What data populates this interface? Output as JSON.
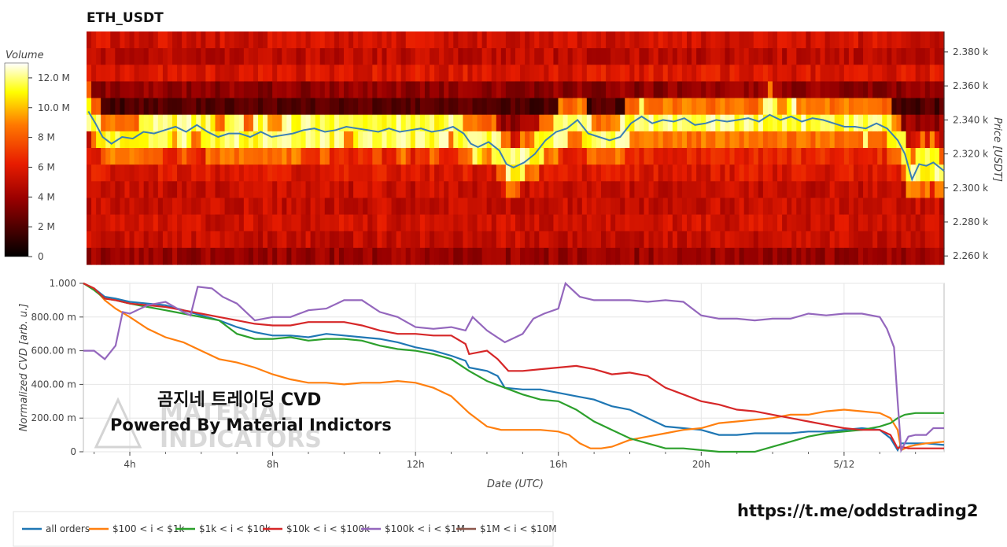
{
  "chart_data": [
    {
      "type": "heatmap",
      "title": "ETH_USDT",
      "ylabel": "Price [USDT]",
      "colorbar_label": "Volume",
      "colorbar_ticks": [
        "0",
        "2 M",
        "4 M",
        "6 M",
        "8 M",
        "10.0 M",
        "12.0 M"
      ],
      "colorbar_range": [
        0,
        13.0
      ],
      "y_ticks": [
        "2.380 k",
        "2.360 k",
        "2.340 k",
        "2.320 k",
        "2.300 k",
        "2.280 k",
        "2.260 k"
      ],
      "y_tick_values": [
        2380,
        2360,
        2340,
        2320,
        2300,
        2280,
        2260
      ],
      "ylim": [
        2255,
        2392
      ],
      "xlim": [
        2.7,
        26.8
      ],
      "price_line_color": "#3a7fb5",
      "price_line": {
        "x": [
          2.75,
          2.95,
          3.15,
          3.4,
          3.7,
          4.0,
          4.3,
          4.6,
          4.9,
          5.2,
          5.5,
          5.8,
          6.1,
          6.4,
          6.7,
          7.0,
          7.3,
          7.6,
          7.9,
          8.2,
          8.5,
          8.8,
          9.1,
          9.4,
          9.7,
          10.0,
          10.3,
          10.6,
          10.9,
          11.2,
          11.5,
          11.8,
          12.1,
          12.4,
          12.7,
          13.0,
          13.3,
          13.5,
          13.7,
          14.0,
          14.3,
          14.5,
          14.7,
          15.0,
          15.3,
          15.6,
          15.9,
          16.2,
          16.5,
          16.8,
          17.1,
          17.4,
          17.7,
          18.0,
          18.3,
          18.6,
          18.9,
          19.2,
          19.5,
          19.8,
          20.1,
          20.4,
          20.7,
          21.0,
          21.3,
          21.6,
          21.9,
          22.2,
          22.5,
          22.8,
          23.1,
          23.4,
          23.7,
          24.0,
          24.3,
          24.6,
          24.9,
          25.2,
          25.5,
          25.7,
          25.9,
          26.1,
          26.3,
          26.5,
          26.8
        ],
        "y": [
          2345,
          2338,
          2330,
          2326,
          2330,
          2329,
          2333,
          2332,
          2334,
          2336,
          2333,
          2337,
          2333,
          2330,
          2332,
          2332,
          2330,
          2333,
          2330,
          2331,
          2332,
          2334,
          2335,
          2333,
          2334,
          2336,
          2335,
          2334,
          2333,
          2335,
          2333,
          2334,
          2335,
          2333,
          2334,
          2336,
          2332,
          2326,
          2324,
          2327,
          2322,
          2314,
          2312,
          2315,
          2320,
          2328,
          2333,
          2335,
          2340,
          2332,
          2330,
          2328,
          2330,
          2338,
          2342,
          2338,
          2340,
          2339,
          2341,
          2337,
          2338,
          2340,
          2339,
          2340,
          2341,
          2339,
          2343,
          2340,
          2342,
          2339,
          2341,
          2340,
          2338,
          2336,
          2336,
          2335,
          2338,
          2335,
          2328,
          2320,
          2305,
          2314,
          2313,
          2315,
          2310
        ]
      }
    },
    {
      "type": "line",
      "ylabel": "Normalized CVD [arb. u.]",
      "xlabel": "Date (UTC)",
      "x_ticks": [
        "4h",
        "8h",
        "12h",
        "16h",
        "20h",
        "5/12"
      ],
      "x_tick_values": [
        4,
        8,
        12,
        16,
        20,
        24
      ],
      "xlim": [
        2.7,
        26.8
      ],
      "y_ticks": [
        "0",
        "200.00 m",
        "400.00 m",
        "600.00 m",
        "800.00 m",
        "1.000"
      ],
      "y_tick_values": [
        0,
        0.2,
        0.4,
        0.6,
        0.8,
        1.0
      ],
      "ylim": [
        0,
        1.0
      ],
      "grid": true,
      "legend_position": "bottom-left",
      "series": [
        {
          "name": "all orders",
          "color": "#1f77b4",
          "x": [
            2.7,
            3.0,
            3.3,
            3.6,
            4.0,
            4.5,
            5.0,
            5.5,
            6.0,
            6.5,
            7.0,
            7.5,
            8.0,
            8.5,
            9.0,
            9.5,
            10.0,
            10.5,
            11.0,
            11.5,
            12.0,
            12.5,
            13.0,
            13.4,
            13.5,
            14.0,
            14.3,
            14.5,
            15.0,
            15.5,
            16.0,
            16.5,
            17.0,
            17.5,
            18.0,
            18.5,
            19.0,
            19.5,
            20.0,
            20.5,
            21.0,
            21.5,
            22.0,
            22.5,
            23.0,
            23.5,
            24.0,
            24.5,
            25.0,
            25.3,
            25.5,
            25.6,
            25.8,
            26.0,
            26.3,
            26.8
          ],
          "y": [
            1.0,
            0.97,
            0.92,
            0.91,
            0.89,
            0.88,
            0.87,
            0.84,
            0.81,
            0.78,
            0.74,
            0.71,
            0.69,
            0.69,
            0.68,
            0.7,
            0.69,
            0.68,
            0.67,
            0.65,
            0.62,
            0.6,
            0.57,
            0.54,
            0.5,
            0.48,
            0.45,
            0.38,
            0.37,
            0.37,
            0.35,
            0.33,
            0.31,
            0.27,
            0.25,
            0.2,
            0.15,
            0.14,
            0.13,
            0.1,
            0.1,
            0.11,
            0.11,
            0.11,
            0.12,
            0.12,
            0.13,
            0.14,
            0.13,
            0.08,
            0.01,
            0.05,
            0.05,
            0.05,
            0.05,
            0.04
          ]
        },
        {
          "name": "$100 < i < $1k",
          "color": "#ff7f0e",
          "x": [
            2.7,
            3.0,
            3.3,
            3.6,
            4.0,
            4.5,
            5.0,
            5.5,
            6.0,
            6.5,
            7.0,
            7.5,
            8.0,
            8.5,
            9.0,
            9.5,
            10.0,
            10.5,
            11.0,
            11.5,
            12.0,
            12.5,
            13.0,
            13.5,
            14.0,
            14.4,
            14.6,
            15.0,
            15.5,
            16.0,
            16.3,
            16.6,
            16.9,
            17.2,
            17.5,
            18.0,
            18.5,
            19.0,
            19.5,
            20.0,
            20.5,
            21.0,
            21.5,
            22.0,
            22.5,
            23.0,
            23.5,
            24.0,
            24.5,
            25.0,
            25.3,
            25.5,
            25.6,
            25.8,
            26.0,
            26.3,
            26.8
          ],
          "y": [
            1.0,
            0.97,
            0.9,
            0.85,
            0.8,
            0.73,
            0.68,
            0.65,
            0.6,
            0.55,
            0.53,
            0.5,
            0.46,
            0.43,
            0.41,
            0.41,
            0.4,
            0.41,
            0.41,
            0.42,
            0.41,
            0.38,
            0.33,
            0.23,
            0.15,
            0.13,
            0.13,
            0.13,
            0.13,
            0.12,
            0.1,
            0.05,
            0.02,
            0.02,
            0.03,
            0.07,
            0.09,
            0.11,
            0.13,
            0.14,
            0.17,
            0.18,
            0.19,
            0.2,
            0.22,
            0.22,
            0.24,
            0.25,
            0.24,
            0.23,
            0.2,
            0.13,
            0.01,
            0.03,
            0.04,
            0.05,
            0.06
          ]
        },
        {
          "name": "$1k < i < $10k",
          "color": "#2ca02c",
          "x": [
            2.7,
            3.0,
            3.3,
            3.6,
            4.0,
            4.5,
            5.0,
            5.5,
            6.0,
            6.5,
            7.0,
            7.5,
            8.0,
            8.5,
            9.0,
            9.5,
            10.0,
            10.5,
            11.0,
            11.5,
            12.0,
            12.5,
            13.0,
            13.5,
            14.0,
            14.5,
            15.0,
            15.5,
            16.0,
            16.5,
            17.0,
            17.5,
            18.0,
            18.5,
            19.0,
            19.5,
            20.0,
            20.5,
            21.0,
            21.5,
            22.0,
            22.5,
            23.0,
            23.5,
            24.0,
            24.5,
            25.0,
            25.3,
            25.5,
            25.7,
            26.0,
            26.3,
            26.8
          ],
          "y": [
            1.0,
            0.96,
            0.91,
            0.9,
            0.88,
            0.86,
            0.84,
            0.82,
            0.8,
            0.78,
            0.7,
            0.67,
            0.67,
            0.68,
            0.66,
            0.67,
            0.67,
            0.66,
            0.63,
            0.61,
            0.6,
            0.58,
            0.55,
            0.48,
            0.42,
            0.38,
            0.34,
            0.31,
            0.3,
            0.25,
            0.18,
            0.13,
            0.08,
            0.05,
            0.02,
            0.02,
            0.01,
            0.0,
            0.0,
            0.0,
            0.03,
            0.06,
            0.09,
            0.11,
            0.12,
            0.13,
            0.15,
            0.17,
            0.2,
            0.22,
            0.23,
            0.23,
            0.23
          ]
        },
        {
          "name": "$10k < i < $100k",
          "color": "#d62728",
          "x": [
            2.7,
            3.0,
            3.3,
            3.6,
            4.0,
            4.5,
            5.0,
            5.5,
            6.0,
            6.5,
            7.0,
            7.5,
            8.0,
            8.5,
            9.0,
            9.5,
            10.0,
            10.5,
            11.0,
            11.5,
            12.0,
            12.5,
            13.0,
            13.4,
            13.5,
            14.0,
            14.3,
            14.6,
            15.0,
            15.5,
            16.0,
            16.5,
            17.0,
            17.5,
            18.0,
            18.5,
            19.0,
            19.5,
            20.0,
            20.5,
            21.0,
            21.5,
            22.0,
            22.5,
            23.0,
            23.5,
            24.0,
            24.5,
            25.0,
            25.3,
            25.5,
            25.6,
            25.8,
            26.0,
            26.3,
            26.8
          ],
          "y": [
            1.0,
            0.97,
            0.91,
            0.9,
            0.88,
            0.87,
            0.86,
            0.84,
            0.82,
            0.8,
            0.78,
            0.76,
            0.75,
            0.75,
            0.77,
            0.77,
            0.77,
            0.75,
            0.72,
            0.7,
            0.7,
            0.69,
            0.69,
            0.64,
            0.58,
            0.6,
            0.55,
            0.48,
            0.48,
            0.49,
            0.5,
            0.51,
            0.49,
            0.46,
            0.47,
            0.45,
            0.38,
            0.34,
            0.3,
            0.28,
            0.25,
            0.24,
            0.22,
            0.2,
            0.18,
            0.16,
            0.14,
            0.13,
            0.13,
            0.1,
            0.02,
            0.03,
            0.02,
            0.02,
            0.02,
            0.02
          ]
        },
        {
          "name": "$100k < i < $1M",
          "color": "#9467bd",
          "x": [
            2.7,
            3.0,
            3.3,
            3.6,
            3.8,
            4.0,
            4.5,
            5.0,
            5.5,
            5.7,
            5.9,
            6.3,
            6.6,
            7.0,
            7.5,
            8.0,
            8.5,
            9.0,
            9.5,
            10.0,
            10.5,
            11.0,
            11.5,
            12.0,
            12.5,
            13.0,
            13.4,
            13.6,
            14.0,
            14.5,
            15.0,
            15.3,
            15.6,
            16.0,
            16.2,
            16.4,
            16.6,
            17.0,
            17.5,
            18.0,
            18.5,
            19.0,
            19.5,
            20.0,
            20.5,
            21.0,
            21.5,
            22.0,
            22.5,
            23.0,
            23.5,
            24.0,
            24.5,
            25.0,
            25.2,
            25.4,
            25.5,
            25.6,
            25.8,
            26.0,
            26.3,
            26.5,
            26.8
          ],
          "y": [
            0.6,
            0.6,
            0.55,
            0.63,
            0.83,
            0.82,
            0.87,
            0.89,
            0.83,
            0.81,
            0.98,
            0.97,
            0.92,
            0.88,
            0.78,
            0.8,
            0.8,
            0.84,
            0.85,
            0.9,
            0.9,
            0.83,
            0.8,
            0.74,
            0.73,
            0.74,
            0.72,
            0.8,
            0.72,
            0.65,
            0.7,
            0.79,
            0.82,
            0.85,
            1.0,
            0.96,
            0.92,
            0.9,
            0.9,
            0.9,
            0.89,
            0.9,
            0.89,
            0.81,
            0.79,
            0.79,
            0.78,
            0.79,
            0.79,
            0.82,
            0.81,
            0.82,
            0.82,
            0.8,
            0.73,
            0.62,
            0.3,
            0.01,
            0.09,
            0.1,
            0.1,
            0.14,
            0.14
          ]
        },
        {
          "name": "$1M < i < $10M",
          "color": "#8c564b",
          "x": [],
          "y": []
        }
      ]
    }
  ],
  "watermark": {
    "line1": "곰지네 트레이딩 CVD",
    "line2": "Powered By Material Indictors",
    "logo_top": "MATERIAL",
    "logo_bottom": "INDICATORS"
  },
  "footer_url": "https://t.me/oddstrading2",
  "heatmap_seed": 20240512
}
